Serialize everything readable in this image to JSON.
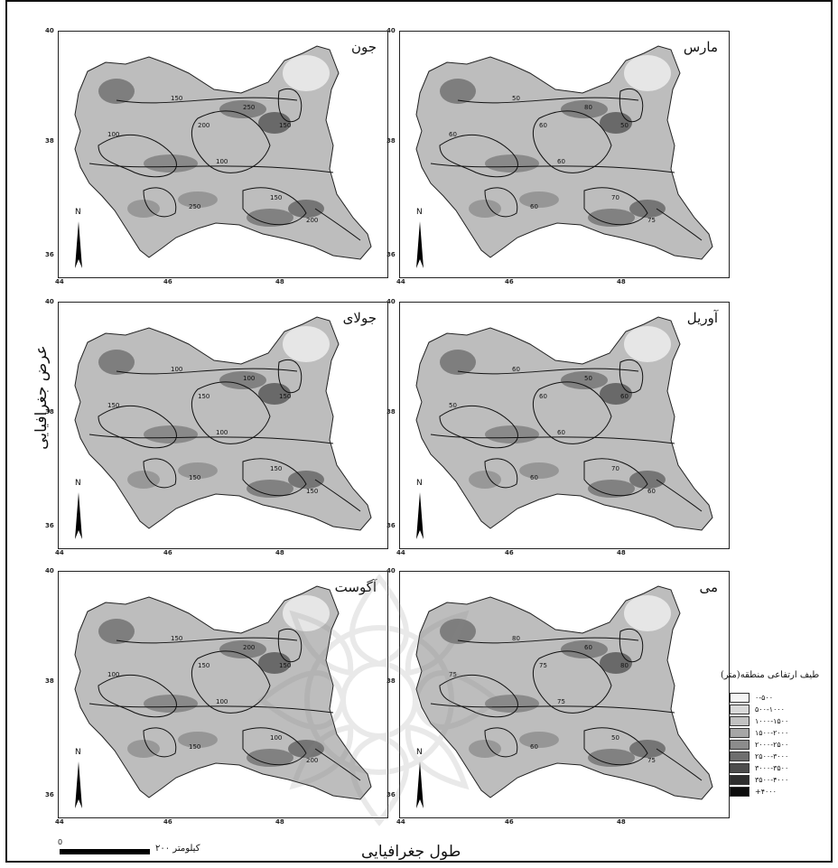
{
  "panels": [
    {
      "id": "june",
      "title": "جون",
      "lon_ticks": [
        "44",
        "46",
        "48"
      ],
      "lat_ticks": [
        "40",
        "38",
        "36"
      ],
      "isolines": [
        "100",
        "150",
        "200",
        "250",
        "150",
        "100",
        "150",
        "250",
        "200"
      ]
    },
    {
      "id": "march",
      "title": "مارس",
      "lon_ticks": [
        "44",
        "46",
        "48"
      ],
      "lat_ticks": [
        "40",
        "38",
        "36"
      ],
      "isolines": [
        "60",
        "50",
        "60",
        "80",
        "50",
        "60",
        "70",
        "60",
        "75"
      ]
    },
    {
      "id": "july",
      "title": "جولای",
      "lon_ticks": [
        "44",
        "46",
        "48"
      ],
      "lat_ticks": [
        "40",
        "38",
        "36"
      ],
      "isolines": [
        "150",
        "100",
        "150",
        "100",
        "150",
        "100",
        "150",
        "150",
        "150"
      ]
    },
    {
      "id": "april",
      "title": "آوریل",
      "lon_ticks": [
        "44",
        "46",
        "48"
      ],
      "lat_ticks": [
        "40",
        "38",
        "36"
      ],
      "isolines": [
        "50",
        "60",
        "60",
        "50",
        "60",
        "60",
        "70",
        "60",
        "60"
      ]
    },
    {
      "id": "august",
      "title": "آگوست",
      "lon_ticks": [
        "44",
        "46",
        "48"
      ],
      "lat_ticks": [
        "40",
        "38",
        "36"
      ],
      "isolines": [
        "100",
        "150",
        "150",
        "200",
        "150",
        "100",
        "100",
        "150",
        "200"
      ]
    },
    {
      "id": "may",
      "title": "می",
      "lon_ticks": [
        "44",
        "46",
        "48"
      ],
      "lat_ticks": [
        "40",
        "38",
        "36"
      ],
      "isolines": [
        "75",
        "80",
        "75",
        "60",
        "80",
        "75",
        "50",
        "60",
        "75"
      ]
    }
  ],
  "north_label": "N",
  "axis": {
    "y": "عرض جغرافیایی",
    "x": "طول جغرافیایی"
  },
  "legend": {
    "title": "طیف ارتفاعی منطقه(متر)",
    "classes": [
      {
        "label": "۰-۵۰۰",
        "color": "#f4f4f4"
      },
      {
        "label": "۵۰۰-۱۰۰۰",
        "color": "#d9d9d9"
      },
      {
        "label": "۱۰۰۰-۱۵۰۰",
        "color": "#c2c2c2"
      },
      {
        "label": "۱۵۰۰-۲۰۰۰",
        "color": "#a6a6a6"
      },
      {
        "label": "۲۰۰۰-۲۵۰۰",
        "color": "#8c8c8c"
      },
      {
        "label": "۲۵۰۰-۳۰۰۰",
        "color": "#6e6e6e"
      },
      {
        "label": "۳۰۰۰-۳۵۰۰",
        "color": "#4d4d4d"
      },
      {
        "label": "۳۵۰۰-۴۰۰۰",
        "color": "#2e2e2e"
      },
      {
        "label": "+۴۰۰۰",
        "color": "#0d0d0d"
      }
    ]
  },
  "scale": {
    "zero": "0",
    "label": "کیلومتر ۲۰۰"
  }
}
